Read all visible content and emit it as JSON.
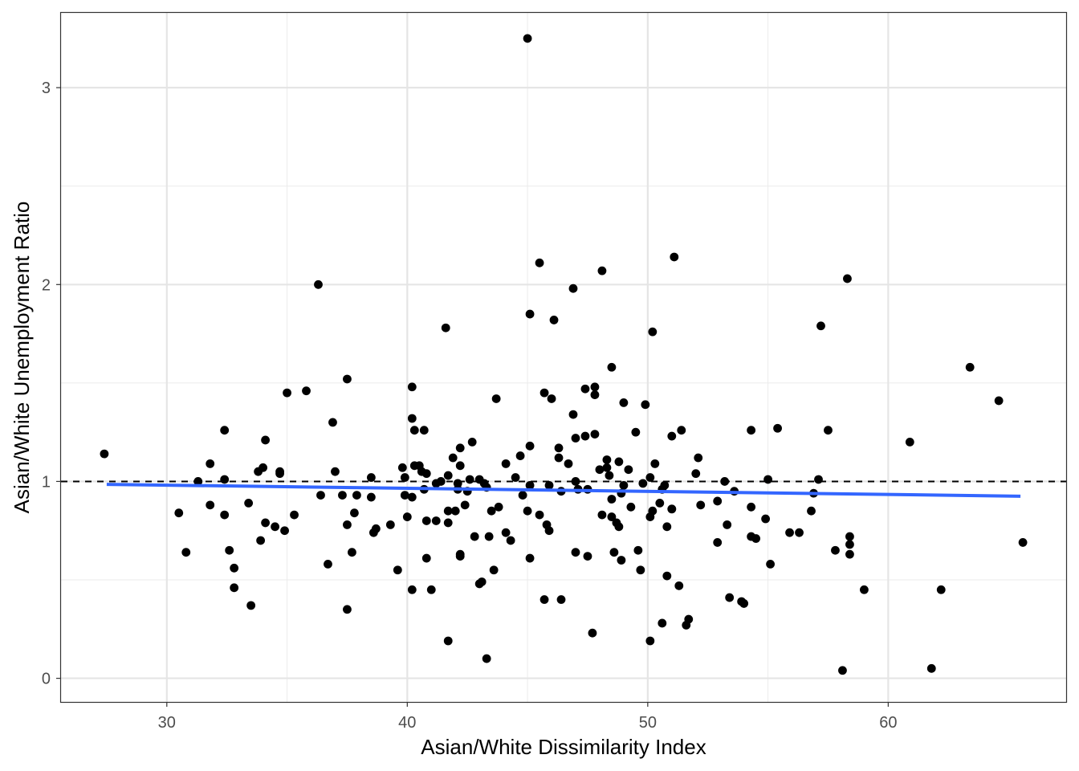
{
  "chart_data": {
    "type": "scatter",
    "title": "",
    "xlabel": "Asian/White Dissimilarity Index",
    "ylabel": "Asian/White Unemployment Ratio",
    "xlim": [
      25.6,
      67.4
    ],
    "ylim": [
      -0.12,
      3.38
    ],
    "x_ticks": [
      30,
      40,
      50,
      60
    ],
    "y_ticks": [
      0,
      1,
      2,
      3
    ],
    "grid": true,
    "legend": "none",
    "reference_line": {
      "y": 1,
      "style": "dashed",
      "color": "#000000"
    },
    "trend_line": {
      "type": "linear-fit",
      "x": [
        27.5,
        65.5
      ],
      "y": [
        0.985,
        0.925
      ],
      "color": "#3366FF"
    },
    "point_color": "#000000",
    "points": [
      [
        27.4,
        1.14
      ],
      [
        30.5,
        0.84
      ],
      [
        30.8,
        0.64
      ],
      [
        31.3,
        1.0
      ],
      [
        31.8,
        1.09
      ],
      [
        31.8,
        0.88
      ],
      [
        32.4,
        1.26
      ],
      [
        32.4,
        1.01
      ],
      [
        32.4,
        0.83
      ],
      [
        32.6,
        0.65
      ],
      [
        32.8,
        0.56
      ],
      [
        32.8,
        0.46
      ],
      [
        33.4,
        0.89
      ],
      [
        33.5,
        0.37
      ],
      [
        33.8,
        1.05
      ],
      [
        33.9,
        0.7
      ],
      [
        34.0,
        1.07
      ],
      [
        34.1,
        1.21
      ],
      [
        34.1,
        0.79
      ],
      [
        34.5,
        0.77
      ],
      [
        34.7,
        1.05
      ],
      [
        34.7,
        1.04
      ],
      [
        34.9,
        0.75
      ],
      [
        35.0,
        1.45
      ],
      [
        35.3,
        0.83
      ],
      [
        35.8,
        1.46
      ],
      [
        36.3,
        2.0
      ],
      [
        36.4,
        0.93
      ],
      [
        36.7,
        0.58
      ],
      [
        36.9,
        1.3
      ],
      [
        37.0,
        1.05
      ],
      [
        37.3,
        0.93
      ],
      [
        37.5,
        1.52
      ],
      [
        37.5,
        0.78
      ],
      [
        37.5,
        0.35
      ],
      [
        37.7,
        0.64
      ],
      [
        37.8,
        0.84
      ],
      [
        37.9,
        0.93
      ],
      [
        38.5,
        1.02
      ],
      [
        38.5,
        0.92
      ],
      [
        38.6,
        0.74
      ],
      [
        38.7,
        0.76
      ],
      [
        39.3,
        0.78
      ],
      [
        39.6,
        0.55
      ],
      [
        39.8,
        1.07
      ],
      [
        39.9,
        1.02
      ],
      [
        39.9,
        0.93
      ],
      [
        40.0,
        0.82
      ],
      [
        40.2,
        1.48
      ],
      [
        40.2,
        1.32
      ],
      [
        40.2,
        0.92
      ],
      [
        40.2,
        0.45
      ],
      [
        40.3,
        1.26
      ],
      [
        40.3,
        1.08
      ],
      [
        40.5,
        1.08
      ],
      [
        40.6,
        1.05
      ],
      [
        40.7,
        1.26
      ],
      [
        40.7,
        0.96
      ],
      [
        40.8,
        1.04
      ],
      [
        40.8,
        0.8
      ],
      [
        40.8,
        0.61
      ],
      [
        41.0,
        0.45
      ],
      [
        41.2,
        0.99
      ],
      [
        41.2,
        0.8
      ],
      [
        41.4,
        1.0
      ],
      [
        41.6,
        1.78
      ],
      [
        41.7,
        1.03
      ],
      [
        41.7,
        0.85
      ],
      [
        41.7,
        0.79
      ],
      [
        41.7,
        0.19
      ],
      [
        41.9,
        1.12
      ],
      [
        42.0,
        0.85
      ],
      [
        42.1,
        0.99
      ],
      [
        42.1,
        0.96
      ],
      [
        42.2,
        1.17
      ],
      [
        42.2,
        1.08
      ],
      [
        42.2,
        0.62
      ],
      [
        42.2,
        0.63
      ],
      [
        42.4,
        0.88
      ],
      [
        42.5,
        0.95
      ],
      [
        42.6,
        1.01
      ],
      [
        42.7,
        1.2
      ],
      [
        42.8,
        0.72
      ],
      [
        43.0,
        1.01
      ],
      [
        43.0,
        0.48
      ],
      [
        43.1,
        0.49
      ],
      [
        43.2,
        0.99
      ],
      [
        43.3,
        0.97
      ],
      [
        43.3,
        0.1
      ],
      [
        43.4,
        0.72
      ],
      [
        43.5,
        0.85
      ],
      [
        43.6,
        0.55
      ],
      [
        43.7,
        1.42
      ],
      [
        43.8,
        0.87
      ],
      [
        44.1,
        1.09
      ],
      [
        44.1,
        0.74
      ],
      [
        44.3,
        0.7
      ],
      [
        44.5,
        1.02
      ],
      [
        44.7,
        1.13
      ],
      [
        44.8,
        0.93
      ],
      [
        45.0,
        3.25
      ],
      [
        45.0,
        0.85
      ],
      [
        45.1,
        1.85
      ],
      [
        45.1,
        1.18
      ],
      [
        45.1,
        0.98
      ],
      [
        45.1,
        0.61
      ],
      [
        45.5,
        2.11
      ],
      [
        45.5,
        0.83
      ],
      [
        45.7,
        1.45
      ],
      [
        45.7,
        0.4
      ],
      [
        45.8,
        0.78
      ],
      [
        45.9,
        0.98
      ],
      [
        45.9,
        0.75
      ],
      [
        46.0,
        1.42
      ],
      [
        46.1,
        1.82
      ],
      [
        46.3,
        1.17
      ],
      [
        46.3,
        1.12
      ],
      [
        46.4,
        0.95
      ],
      [
        46.4,
        0.4
      ],
      [
        46.7,
        1.09
      ],
      [
        46.9,
        1.34
      ],
      [
        46.9,
        1.98
      ],
      [
        47.0,
        1.22
      ],
      [
        47.0,
        1.0
      ],
      [
        47.0,
        0.64
      ],
      [
        47.1,
        0.96
      ],
      [
        47.4,
        1.23
      ],
      [
        47.4,
        1.47
      ],
      [
        47.5,
        0.96
      ],
      [
        47.5,
        0.62
      ],
      [
        47.7,
        0.23
      ],
      [
        47.8,
        1.48
      ],
      [
        47.8,
        1.44
      ],
      [
        47.8,
        1.24
      ],
      [
        48.0,
        1.06
      ],
      [
        48.1,
        2.07
      ],
      [
        48.1,
        0.83
      ],
      [
        48.3,
        1.11
      ],
      [
        48.3,
        1.07
      ],
      [
        48.4,
        1.03
      ],
      [
        48.5,
        1.58
      ],
      [
        48.5,
        0.91
      ],
      [
        48.5,
        0.82
      ],
      [
        48.6,
        0.64
      ],
      [
        48.7,
        0.79
      ],
      [
        48.8,
        1.1
      ],
      [
        48.8,
        0.77
      ],
      [
        48.9,
        0.94
      ],
      [
        48.9,
        0.6
      ],
      [
        49.0,
        1.4
      ],
      [
        49.0,
        0.98
      ],
      [
        49.2,
        1.06
      ],
      [
        49.3,
        0.87
      ],
      [
        49.5,
        1.25
      ],
      [
        49.6,
        0.65
      ],
      [
        49.7,
        0.55
      ],
      [
        49.8,
        0.99
      ],
      [
        49.9,
        1.39
      ],
      [
        50.1,
        1.02
      ],
      [
        50.1,
        0.82
      ],
      [
        50.1,
        0.19
      ],
      [
        50.2,
        1.76
      ],
      [
        50.2,
        0.85
      ],
      [
        50.3,
        1.09
      ],
      [
        50.5,
        0.89
      ],
      [
        50.6,
        0.96
      ],
      [
        50.6,
        0.28
      ],
      [
        50.7,
        0.98
      ],
      [
        50.8,
        0.77
      ],
      [
        50.8,
        0.52
      ],
      [
        51.0,
        1.23
      ],
      [
        51.0,
        0.86
      ],
      [
        51.0,
        0.86
      ],
      [
        51.1,
        2.14
      ],
      [
        51.3,
        0.47
      ],
      [
        51.4,
        1.26
      ],
      [
        51.6,
        0.27
      ],
      [
        51.7,
        0.3
      ],
      [
        52.0,
        1.04
      ],
      [
        52.1,
        1.12
      ],
      [
        52.2,
        0.88
      ],
      [
        52.9,
        0.69
      ],
      [
        52.9,
        0.9
      ],
      [
        53.2,
        1.0
      ],
      [
        53.3,
        0.78
      ],
      [
        53.4,
        0.41
      ],
      [
        53.6,
        0.95
      ],
      [
        53.9,
        0.39
      ],
      [
        54.0,
        0.38
      ],
      [
        54.3,
        1.26
      ],
      [
        54.3,
        0.87
      ],
      [
        54.3,
        0.72
      ],
      [
        54.5,
        0.71
      ],
      [
        54.9,
        0.81
      ],
      [
        55.0,
        1.01
      ],
      [
        55.1,
        0.58
      ],
      [
        55.4,
        1.27
      ],
      [
        55.9,
        0.74
      ],
      [
        56.3,
        0.74
      ],
      [
        56.8,
        0.85
      ],
      [
        56.9,
        0.94
      ],
      [
        57.1,
        1.01
      ],
      [
        57.2,
        1.79
      ],
      [
        57.5,
        1.26
      ],
      [
        57.8,
        0.65
      ],
      [
        58.1,
        0.04
      ],
      [
        58.3,
        2.03
      ],
      [
        58.4,
        0.63
      ],
      [
        58.4,
        0.72
      ],
      [
        58.4,
        0.68
      ],
      [
        59.0,
        0.45
      ],
      [
        60.9,
        1.2
      ],
      [
        61.8,
        0.05
      ],
      [
        62.2,
        0.45
      ],
      [
        63.4,
        1.58
      ],
      [
        64.6,
        1.41
      ],
      [
        65.6,
        0.69
      ]
    ]
  }
}
